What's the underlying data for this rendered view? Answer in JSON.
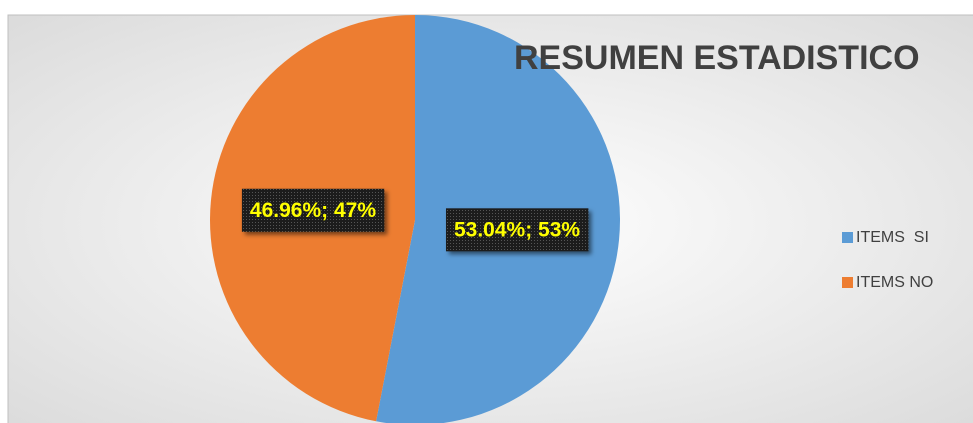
{
  "chart_data": {
    "type": "pie",
    "title": "RESUMEN ESTADISTICO",
    "categories": [
      "ITEMS  SI",
      "ITEMS NO"
    ],
    "values": [
      53.04,
      46.96
    ],
    "value_labels": [
      "53.04%; 53%",
      "46.96%; 47%"
    ],
    "colors": [
      "#5b9bd5",
      "#ed7d31"
    ],
    "legend": "right"
  }
}
